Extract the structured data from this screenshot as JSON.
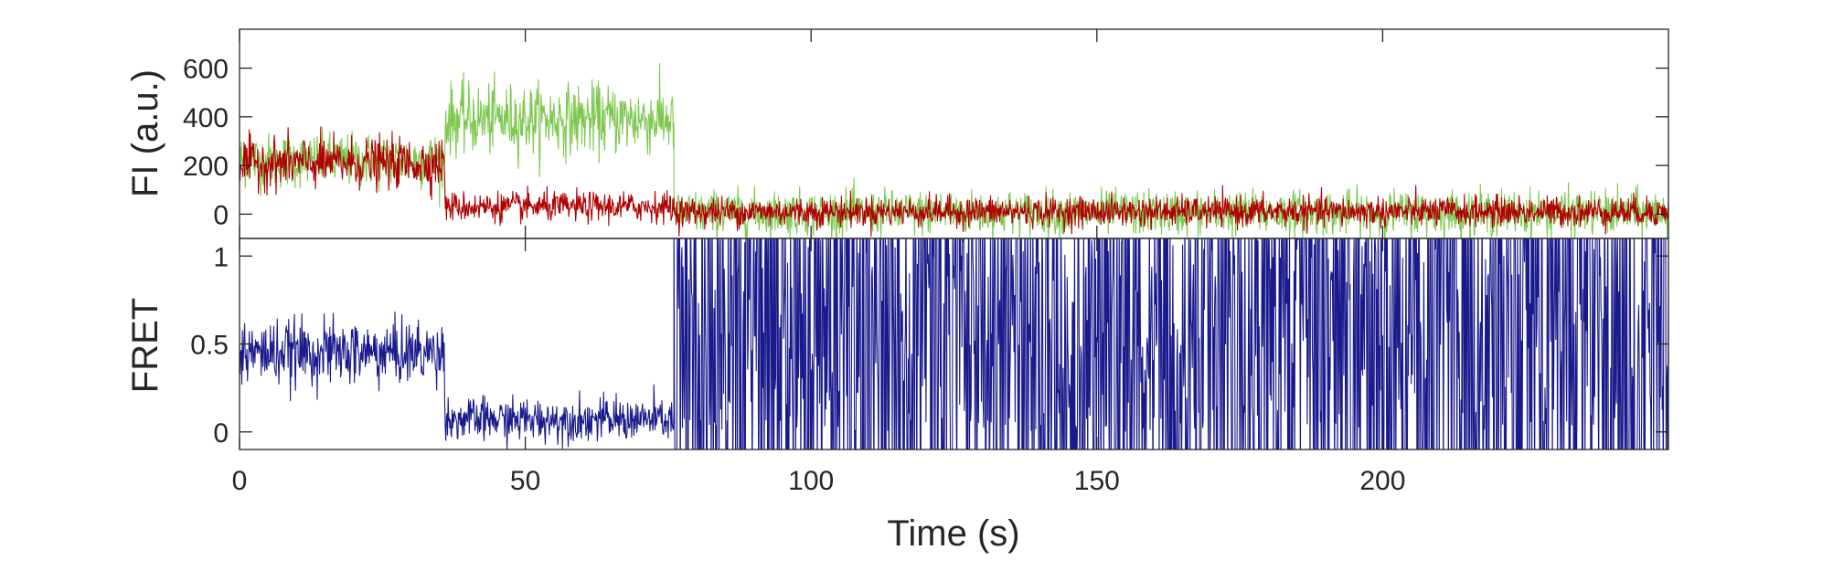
{
  "chart_data": [
    {
      "type": "line",
      "ylabel": "FI (a.u.)",
      "xlabel": "",
      "xlim": [
        0,
        250
      ],
      "ylim": [
        -100,
        760
      ],
      "yticks": [
        0,
        200,
        400,
        600
      ],
      "ytick_labels": [
        "0",
        "200",
        "400",
        "600"
      ],
      "xticks": [
        0,
        50,
        100,
        150,
        200
      ],
      "show_x_tick_labels": false,
      "series": [
        {
          "color": "#7ec850",
          "segments": [
            {
              "x_start": 0,
              "x_end": 36,
              "mean": 220,
              "noise_sd": 55
            },
            {
              "x_start": 36,
              "x_end": 76,
              "mean": 390,
              "noise_sd": 70
            },
            {
              "x_start": 76,
              "x_end": 250,
              "mean": 5,
              "noise_sd": 45
            }
          ]
        },
        {
          "color": "#b00000",
          "segments": [
            {
              "x_start": 0,
              "x_end": 36,
              "mean": 210,
              "noise_sd": 50
            },
            {
              "x_start": 36,
              "x_end": 76,
              "mean": 30,
              "noise_sd": 30
            },
            {
              "x_start": 76,
              "x_end": 250,
              "mean": 10,
              "noise_sd": 30
            }
          ]
        }
      ]
    },
    {
      "type": "line",
      "ylabel": "FRET",
      "xlabel": "Time (s)",
      "xlim": [
        0,
        250
      ],
      "ylim": [
        -0.1,
        1.1
      ],
      "yticks": [
        0,
        0.5,
        1
      ],
      "ytick_labels": [
        "0",
        "0.5",
        "1"
      ],
      "xticks": [
        0,
        50,
        100,
        150,
        200
      ],
      "xtick_labels": [
        "0",
        "50",
        "100",
        "150",
        "200"
      ],
      "series": [
        {
          "color": "#1a1a8c",
          "segments": [
            {
              "x_start": 0,
              "x_end": 36,
              "mean": 0.45,
              "noise_sd": 0.09
            },
            {
              "x_start": 36,
              "x_end": 76,
              "mean": 0.07,
              "noise_sd": 0.06
            },
            {
              "x_start": 76,
              "x_end": 250,
              "mean": 0.5,
              "noise_sd": 0.5
            }
          ]
        }
      ]
    }
  ]
}
